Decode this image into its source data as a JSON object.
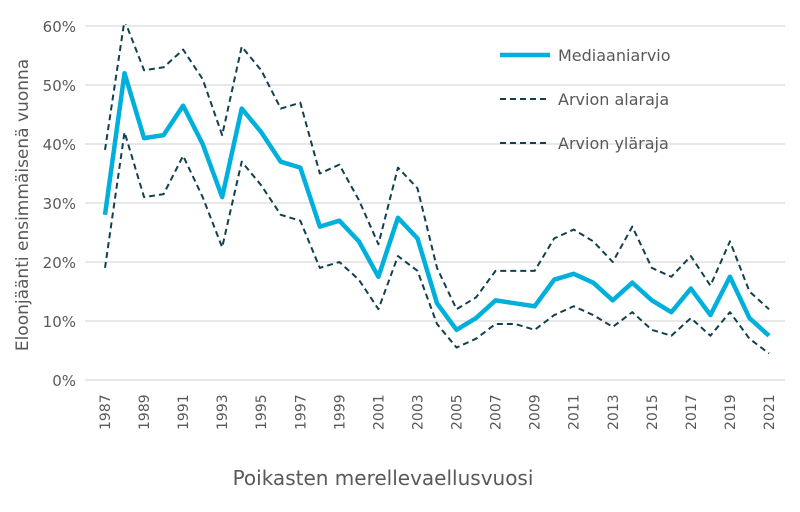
{
  "chart_data": {
    "type": "line",
    "title": "",
    "xlabel": "Poikasten merellevaellusvuosi",
    "ylabel": "Eloonjäänti ensimmäisenä vuonna",
    "ylim": [
      0,
      60
    ],
    "yticks": [
      "0%",
      "10%",
      "20%",
      "30%",
      "40%",
      "50%",
      "60%"
    ],
    "ytick_values": [
      0,
      10,
      20,
      30,
      40,
      50,
      60
    ],
    "grid": true,
    "legend_position": "top-right",
    "x": [
      1987,
      1988,
      1989,
      1990,
      1991,
      1992,
      1993,
      1994,
      1995,
      1996,
      1997,
      1998,
      1999,
      2000,
      2001,
      2002,
      2003,
      2004,
      2005,
      2006,
      2007,
      2008,
      2009,
      2010,
      2011,
      2012,
      2013,
      2014,
      2015,
      2016,
      2017,
      2018,
      2019,
      2020,
      2021
    ],
    "xtick_labels": [
      "1987",
      "1989",
      "1991",
      "1993",
      "1995",
      "1997",
      "1999",
      "2001",
      "2003",
      "2005",
      "2007",
      "2009",
      "2011",
      "2013",
      "2015",
      "2017",
      "2019",
      "2021"
    ],
    "series": [
      {
        "name": "Mediaaniarvio",
        "color": "#00b0dc",
        "style": "solid",
        "values": [
          28,
          52,
          41,
          41.5,
          46.5,
          40,
          31,
          46,
          42,
          37,
          36,
          26,
          27,
          23.5,
          17.5,
          27.5,
          24,
          13,
          8.5,
          10.5,
          13.5,
          13,
          12.5,
          17,
          18,
          16.5,
          13.5,
          16.5,
          13.5,
          11.5,
          15.5,
          11,
          17.5,
          10.5,
          7.5
        ]
      },
      {
        "name": "Arvion alaraja",
        "color": "#12404f",
        "style": "dashed",
        "values": [
          19,
          42,
          31,
          31.5,
          38,
          31,
          22.5,
          37,
          33,
          28,
          27,
          19,
          20,
          17,
          12,
          21,
          18.5,
          9.5,
          5.5,
          7,
          9.5,
          9.5,
          8.5,
          11,
          12.5,
          11,
          9,
          11.5,
          8.5,
          7.5,
          10.5,
          7.5,
          11.5,
          7,
          4.5
        ]
      },
      {
        "name": "Arvion yläraja",
        "color": "#12404f",
        "style": "dashed",
        "values": [
          39,
          61,
          52.5,
          53,
          56,
          51,
          41.5,
          56.5,
          52.5,
          46,
          47,
          35,
          36.5,
          30.5,
          23,
          36,
          32.5,
          19,
          12,
          14,
          18.5,
          18.5,
          18.5,
          24,
          25.5,
          23.5,
          20,
          26,
          19,
          17.5,
          21,
          16,
          23.5,
          15,
          12
        ]
      }
    ]
  }
}
